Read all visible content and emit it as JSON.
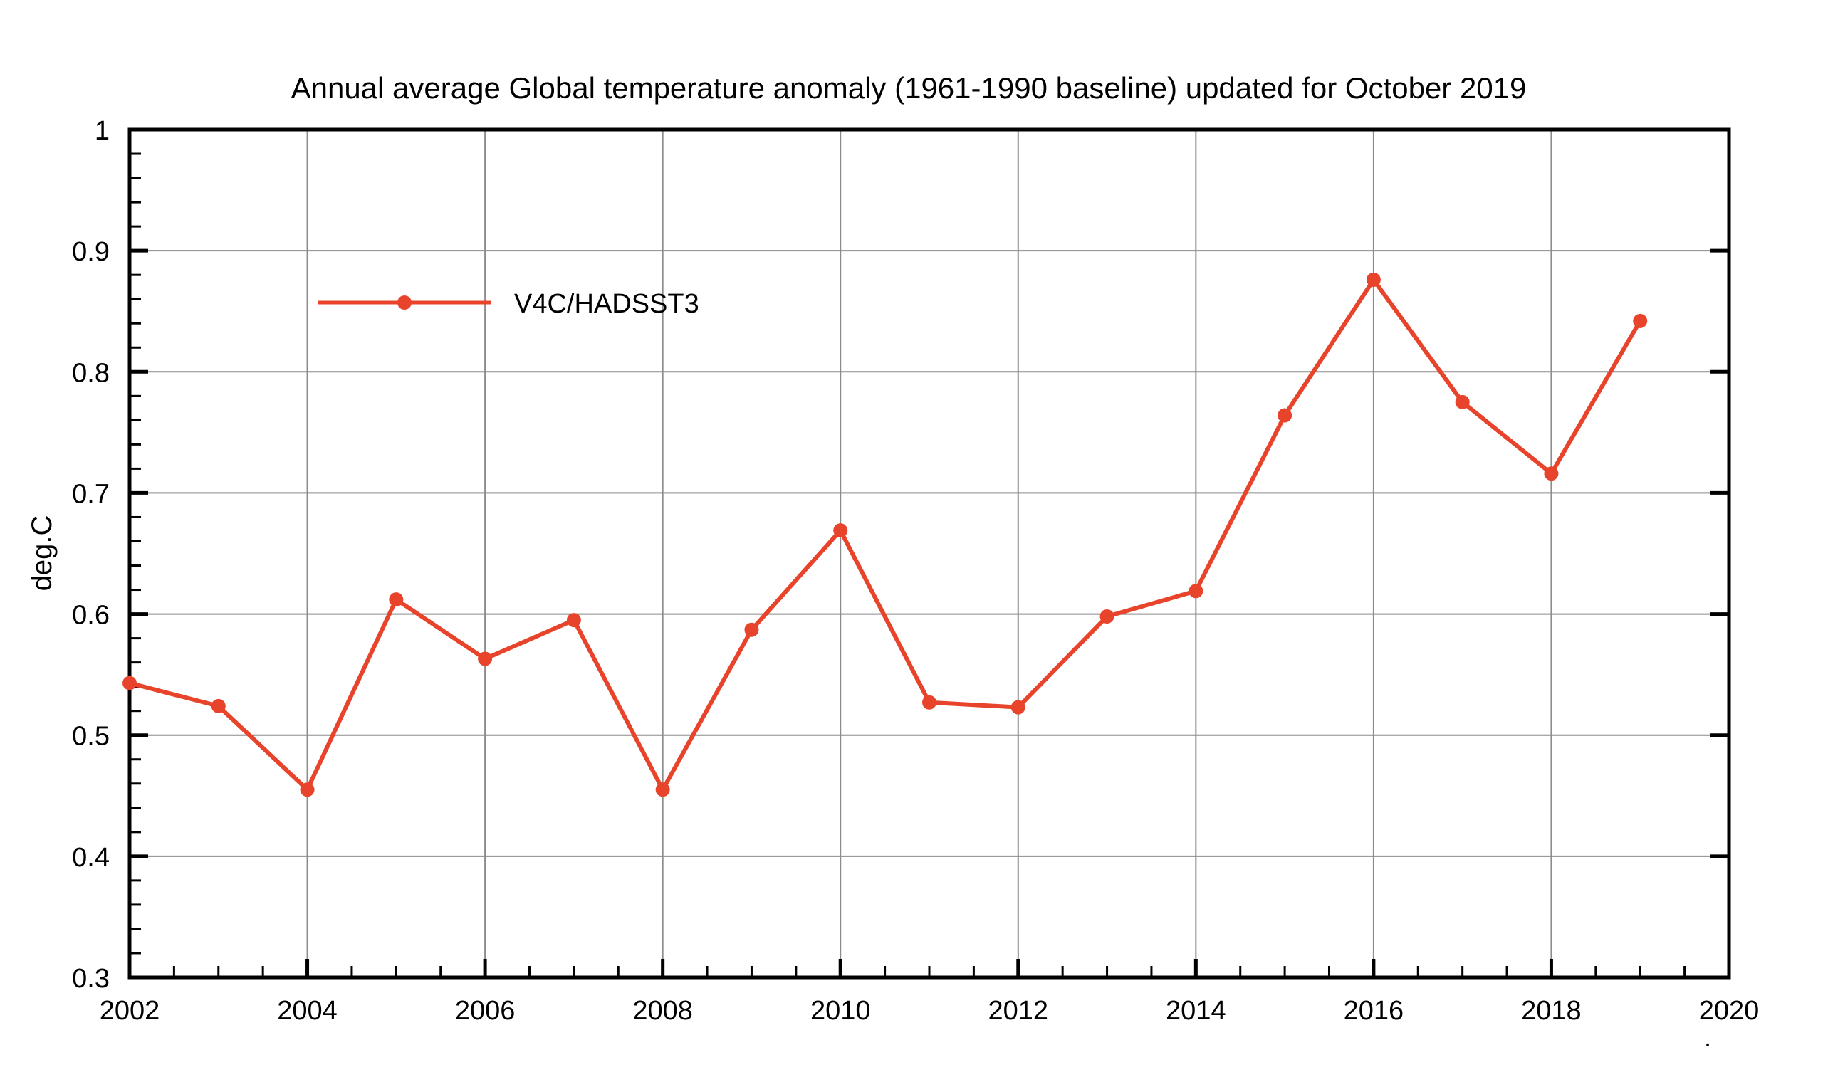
{
  "chart_data": {
    "type": "line",
    "title": "Annual average Global temperature anomaly (1961-1990 baseline) updated for October 2019",
    "xlabel": "",
    "ylabel": "deg.C",
    "xlim": [
      2002,
      2020
    ],
    "ylim": [
      0.3,
      1.0
    ],
    "x_ticks": [
      2002,
      2004,
      2006,
      2008,
      2010,
      2012,
      2014,
      2016,
      2018,
      2020
    ],
    "x_tick_labels": [
      "2002",
      "2004",
      "2006",
      "2008",
      "2010",
      "2012",
      "2014",
      "2016",
      "2018",
      "2020"
    ],
    "y_ticks": [
      0.3,
      0.4,
      0.5,
      0.6,
      0.7,
      0.8,
      0.9,
      1.0
    ],
    "y_tick_labels": [
      "0.3",
      "0.4",
      "0.5",
      "0.6",
      "0.7",
      "0.8",
      "0.9",
      "1"
    ],
    "grid": true,
    "legend_position": "top-left",
    "footnote": ".",
    "series": [
      {
        "name": "V4C/HADSST3",
        "color": "#e8442c",
        "x": [
          2002,
          2003,
          2004,
          2005,
          2006,
          2007,
          2008,
          2009,
          2010,
          2011,
          2012,
          2013,
          2014,
          2015,
          2016,
          2017,
          2018,
          2019
        ],
        "values": [
          0.543,
          0.524,
          0.455,
          0.612,
          0.563,
          0.595,
          0.455,
          0.587,
          0.669,
          0.527,
          0.523,
          0.598,
          0.619,
          0.764,
          0.876,
          0.775,
          0.716,
          0.842
        ]
      }
    ]
  }
}
